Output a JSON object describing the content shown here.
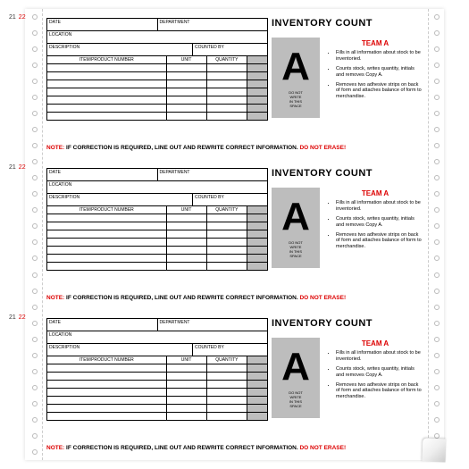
{
  "page_numbers": {
    "n1": "21",
    "n2": "22"
  },
  "title": "INVENTORY COUNT",
  "header_fields": {
    "date": "DATE",
    "department": "DEPARTMENT",
    "location": "LOCATION",
    "description": "DESCRIPTION",
    "counted_by": "COUNTED BY"
  },
  "grid_headers": {
    "item": "ITEM/PRODUCT NUMBER",
    "unit": "UNIT",
    "qty": "QUANTITY"
  },
  "grid_rows": 7,
  "copy_letter": "A",
  "dnw": "DO NOT\nWRITE\nIN THIS\nSPACE",
  "team": {
    "title": "TEAM A",
    "bullets": [
      "Fills in all information about stock to be inventoried.",
      "Counts stock, writes quantity, initials and removes Copy A.",
      "Removes two adhesive strips on back of form and attaches balance of form to merchandise."
    ]
  },
  "note": {
    "prefix": "NOTE:",
    "mid": " IF CORRECTION IS REQUIRED, LINE OUT AND REWRITE CORRECT INFORMATION. ",
    "suffix": "DO NOT ERASE!"
  },
  "slip_count": 3,
  "perf_holes": 28,
  "colors": {
    "accent_red": "#d00",
    "grey_block": "#bdbdbd",
    "text": "#000",
    "bg": "#fff"
  }
}
